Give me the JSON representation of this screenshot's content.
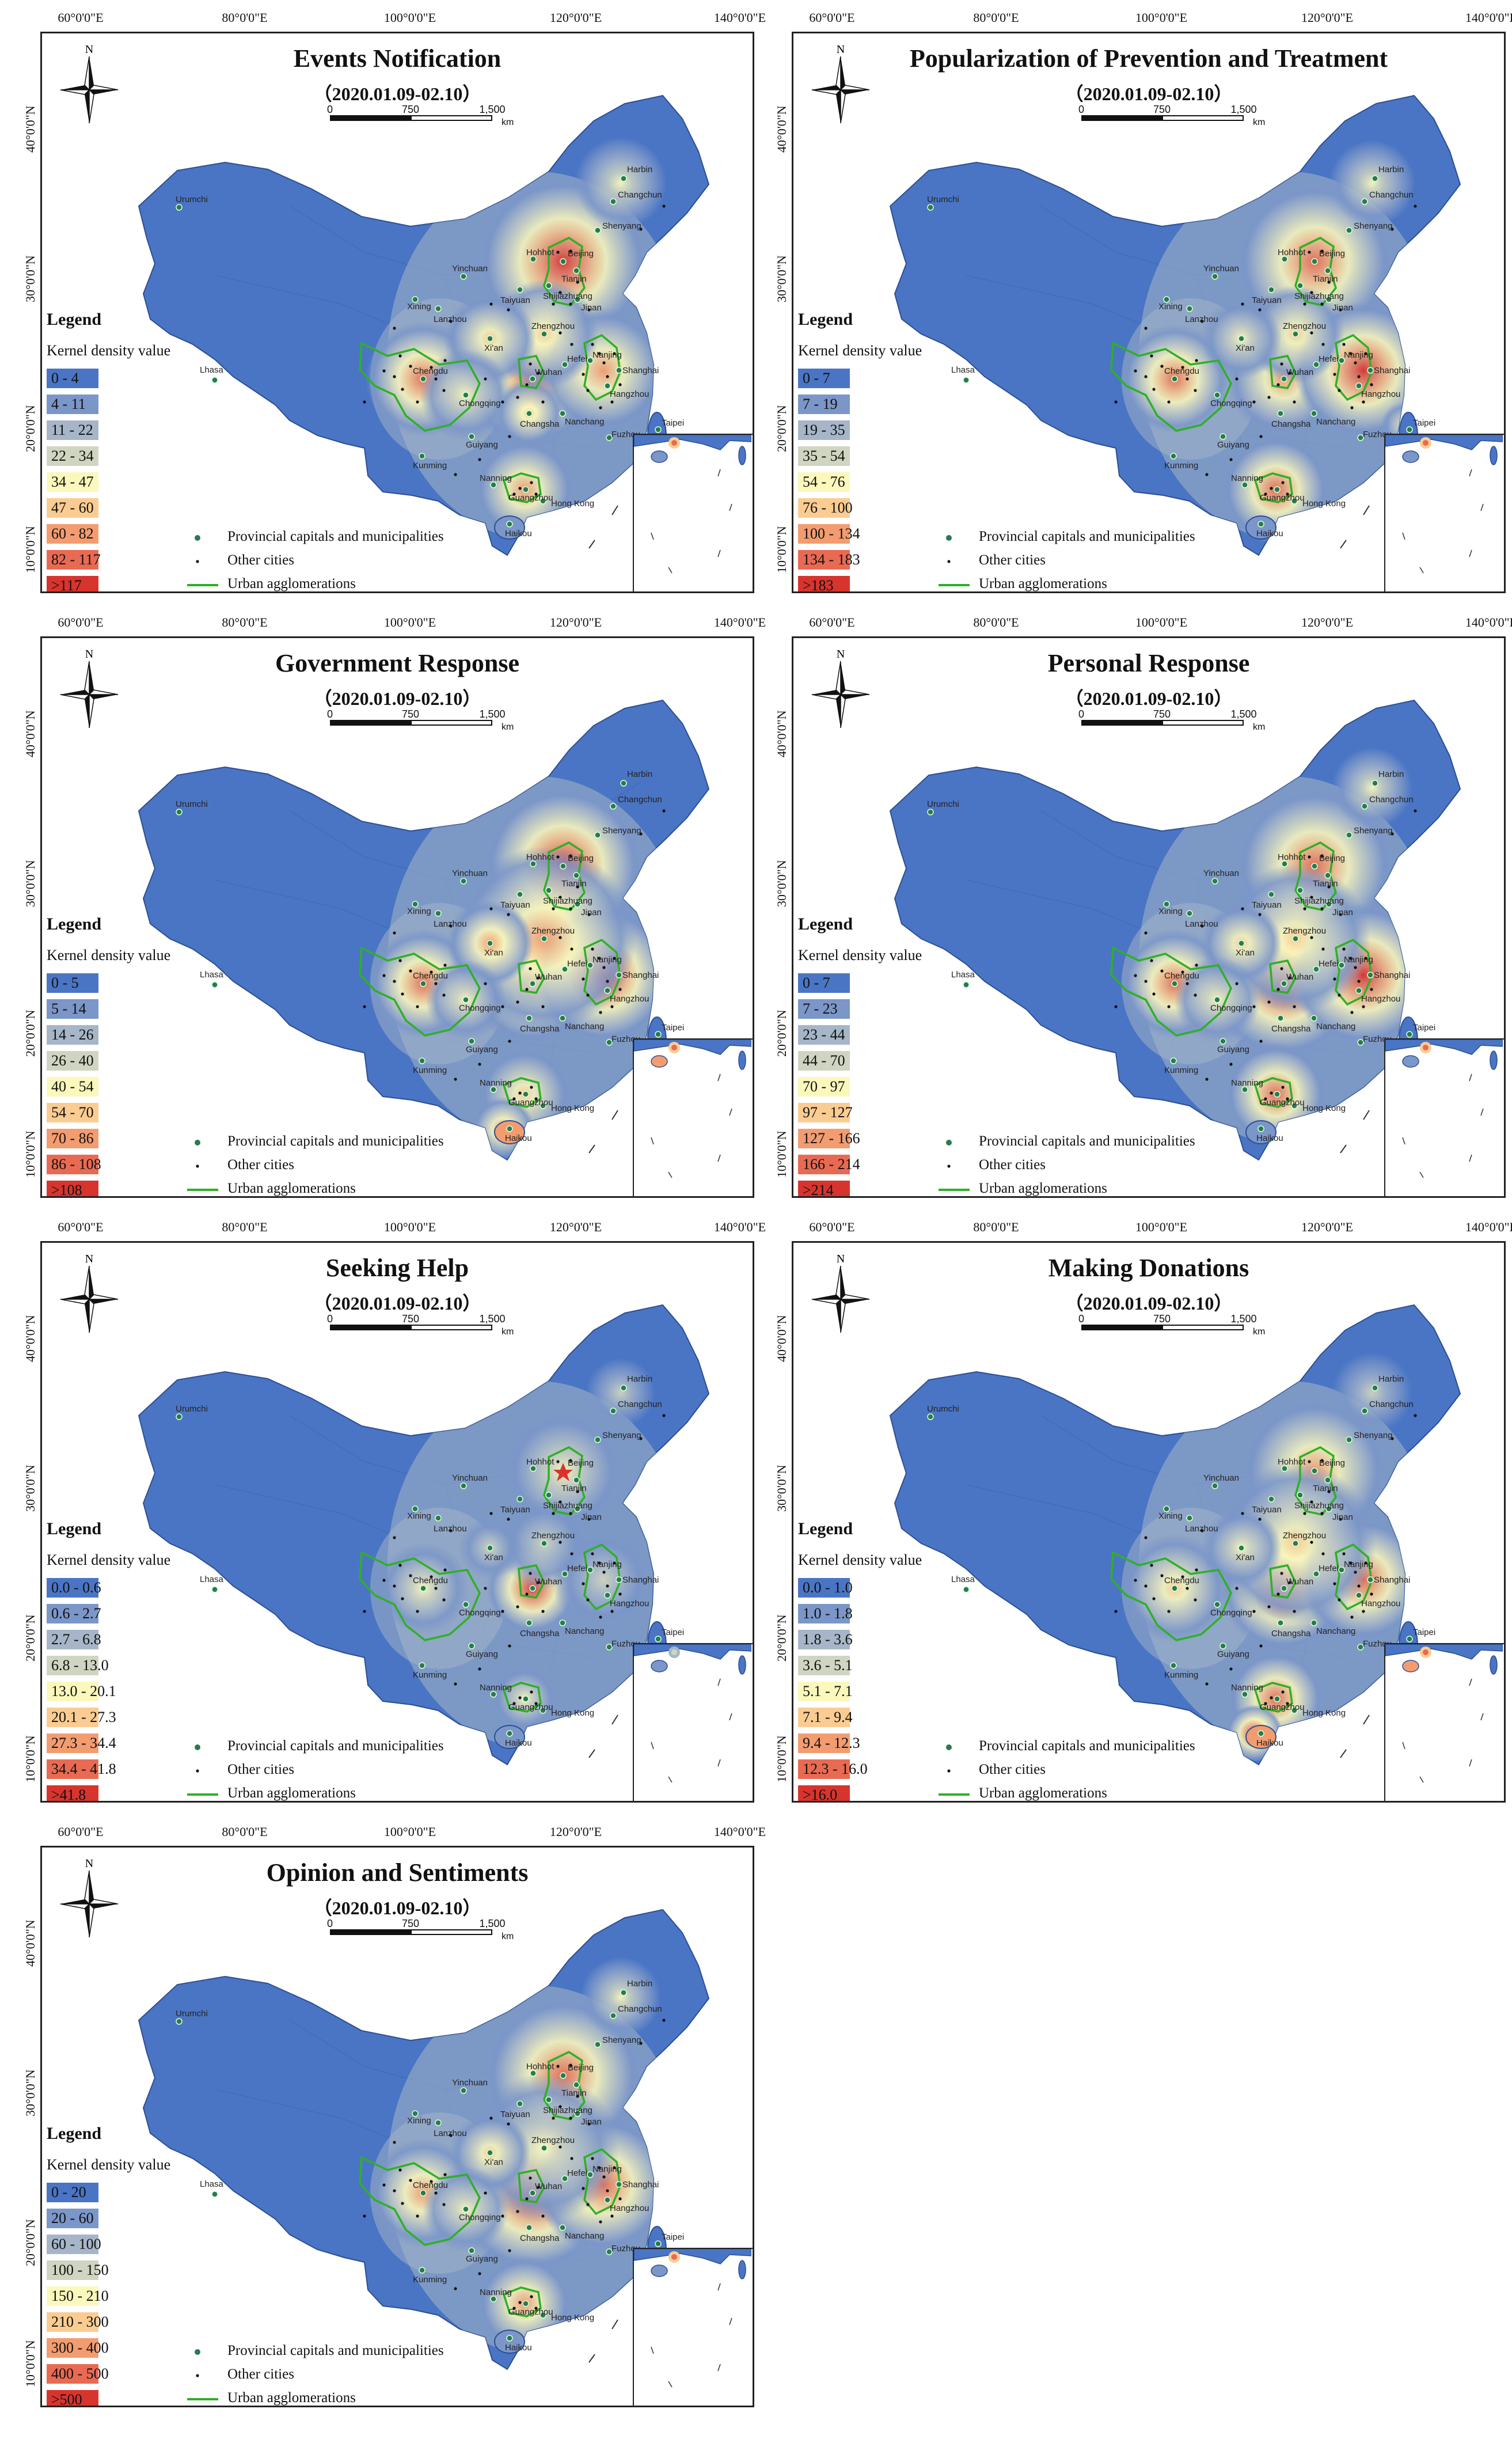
{
  "figure": {
    "date_range": "（2020.01.09-02.10）",
    "scale_ticks": [
      "0",
      "750",
      "1,500"
    ],
    "scale_unit": "km",
    "north_label": "N",
    "longitude_labels": [
      "60°0'0\"E",
      "80°0'0\"E",
      "100°0'0\"E",
      "120°0'0\"E",
      "140°0'0\"E"
    ],
    "latitude_labels": [
      "40°0'0\"N",
      "30°0'0\"N",
      "20°0'0\"N",
      "10°0'0\"N"
    ],
    "legend_title": "Legend",
    "legend_subtitle": "Kernel density value",
    "symbol_legend": {
      "capitals": "Provincial capitals and municipalities",
      "other": "Other cities",
      "agglomerations": "Urban agglomerations"
    },
    "class_colors": [
      "#4a75c4",
      "#7b96c8",
      "#a6b6c8",
      "#d0d5c1",
      "#fbf8bc",
      "#fbcc92",
      "#f39c70",
      "#e96a52",
      "#d8342e"
    ],
    "city_labels": [
      "Urumchi",
      "Harbin",
      "Changchun",
      "Shenyang",
      "Hohhot",
      "Beijing",
      "Tianjin",
      "Shijiazhuang",
      "Taiyuan",
      "Jinan",
      "Yinchuan",
      "Xining",
      "Lanzhou",
      "Xi'an",
      "Zhengzhou",
      "Lhasa",
      "Chengdu",
      "Chongqing",
      "Wuhan",
      "Hefei",
      "Nanjing",
      "Shanghai",
      "Hangzhou",
      "Changsha",
      "Nanchang",
      "Guiyang",
      "Kunming",
      "Fuzhou",
      "Taipei",
      "Nanning",
      "Guangzhou",
      "Hong Kong",
      "Haikou"
    ]
  },
  "panels": [
    {
      "title": "Events Notification",
      "classes": [
        "0 - 4",
        "4 - 11",
        "11 - 22",
        "22 - 34",
        "34 - 47",
        "47 - 60",
        "60 - 82",
        "82 - 117",
        ">117"
      ]
    },
    {
      "title": "Popularization of Prevention and Treatment",
      "classes": [
        "0 - 7",
        "7 - 19",
        "19 - 35",
        "35 - 54",
        "54 - 76",
        "76 - 100",
        "100 - 134",
        "134 - 183",
        ">183"
      ]
    },
    {
      "title": "Government Response",
      "classes": [
        "0 - 5",
        "5 - 14",
        "14 - 26",
        "26 - 40",
        "40 - 54",
        "54 - 70",
        "70 - 86",
        "86 - 108",
        ">108"
      ]
    },
    {
      "title": "Personal Response",
      "classes": [
        "0 - 7",
        "7 - 23",
        "23 - 44",
        "44 - 70",
        "70 - 97",
        "97 - 127",
        "127 - 166",
        "166 - 214",
        ">214"
      ]
    },
    {
      "title": "Seeking Help",
      "classes": [
        "0.0 - 0.6",
        "0.6 - 2.7",
        "2.7 - 6.8",
        "6.8 - 13.0",
        "13.0 - 20.1",
        "20.1 - 27.3",
        "27.3 - 34.4",
        "34.4 - 41.8",
        ">41.8"
      ]
    },
    {
      "title": "Making Donations",
      "classes": [
        "0.0 - 1.0",
        "1.0 - 1.8",
        "1.8 - 3.6",
        "3.6 - 5.1",
        "5.1 - 7.1",
        "7.1 - 9.4",
        "9.4 - 12.3",
        "12.3 - 16.0",
        ">16.0"
      ]
    },
    {
      "title": "Opinion and Sentiments",
      "classes": [
        "0 - 20",
        "20 - 60",
        "60 - 100",
        "100 - 150",
        "150 - 210",
        "210 - 300",
        "300 - 400",
        "400 - 500",
        ">500"
      ]
    }
  ]
}
